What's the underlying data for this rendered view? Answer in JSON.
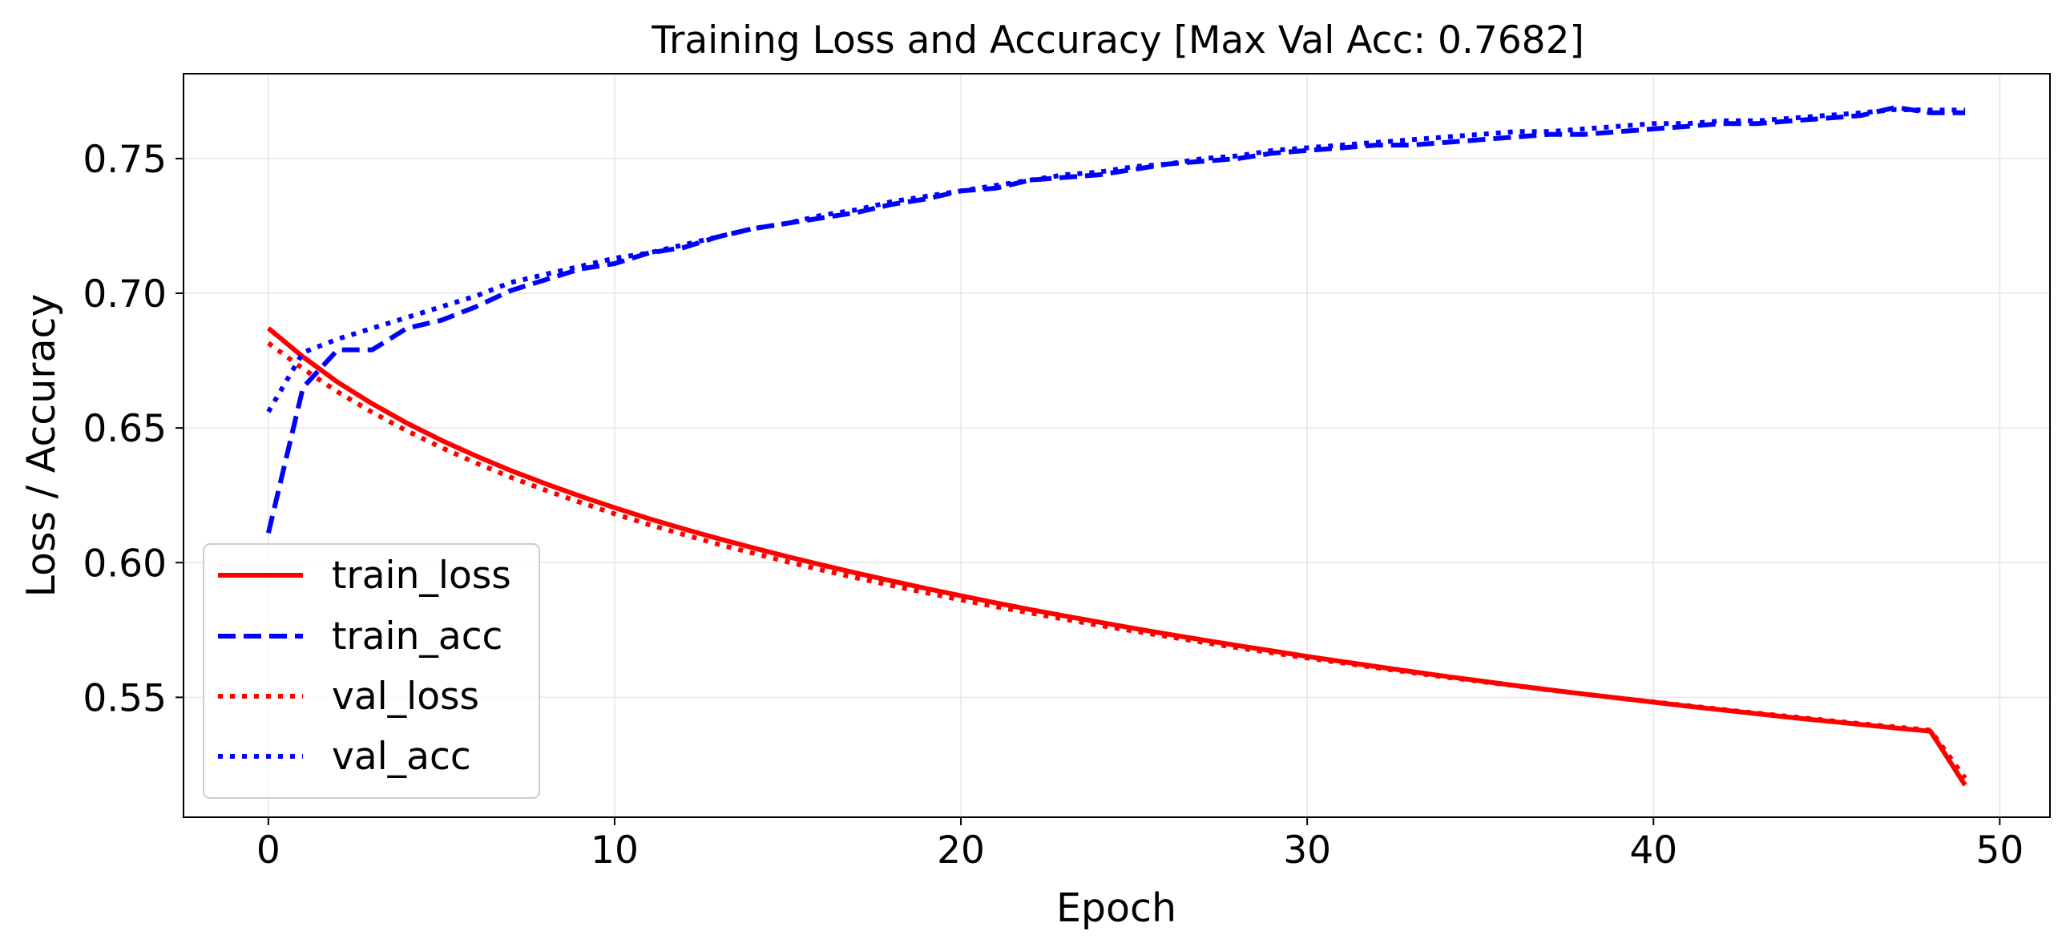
{
  "chart_data": {
    "type": "line",
    "title": "Training Loss and Accuracy [Max Val Acc: 0.7682]",
    "xlabel": "Epoch",
    "ylabel": "Loss / Accuracy",
    "xlim": [
      -2.45,
      51.45
    ],
    "ylim": [
      0.5055,
      0.7815
    ],
    "xticks": [
      0,
      10,
      20,
      30,
      40,
      50
    ],
    "xtick_labels": [
      "0",
      "10",
      "20",
      "30",
      "40",
      "50"
    ],
    "yticks": [
      0.55,
      0.6,
      0.65,
      0.7,
      0.75
    ],
    "ytick_labels": [
      "0.55",
      "0.60",
      "0.65",
      "0.70",
      "0.75"
    ],
    "grid": true,
    "legend_position": "lower-left",
    "series": [
      {
        "name": "train_loss",
        "color": "#ff0000",
        "linestyle": "solid",
        "x": [
          0,
          1,
          2,
          3,
          4,
          5,
          6,
          7,
          8,
          9,
          10,
          11,
          12,
          13,
          14,
          15,
          16,
          17,
          18,
          19,
          20,
          21,
          22,
          23,
          24,
          25,
          26,
          27,
          28,
          29,
          30,
          31,
          32,
          33,
          34,
          35,
          36,
          37,
          38,
          39,
          40,
          41,
          42,
          43,
          44,
          45,
          46,
          47,
          48,
          49
        ],
        "values": [
          0.687,
          0.6764,
          0.667,
          0.659,
          0.6518,
          0.6454,
          0.6396,
          0.6342,
          0.6293,
          0.6247,
          0.6204,
          0.6163,
          0.6125,
          0.6089,
          0.6055,
          0.6022,
          0.5991,
          0.5961,
          0.5932,
          0.5904,
          0.5877,
          0.5851,
          0.5826,
          0.5802,
          0.5779,
          0.5756,
          0.5734,
          0.5713,
          0.5692,
          0.5672,
          0.5652,
          0.5633,
          0.5614,
          0.5596,
          0.5578,
          0.5561,
          0.5544,
          0.5528,
          0.5512,
          0.5497,
          0.5482,
          0.5467,
          0.5453,
          0.5439,
          0.5425,
          0.5412,
          0.5399,
          0.5386,
          0.5374,
          0.5174
        ]
      },
      {
        "name": "train_acc",
        "color": "#0000ff",
        "linestyle": "dashed",
        "x": [
          0,
          1,
          2,
          3,
          4,
          5,
          6,
          7,
          8,
          9,
          10,
          11,
          12,
          13,
          14,
          15,
          16,
          17,
          18,
          19,
          20,
          21,
          22,
          23,
          24,
          25,
          26,
          27,
          28,
          29,
          30,
          31,
          32,
          33,
          34,
          35,
          36,
          37,
          38,
          39,
          40,
          41,
          42,
          43,
          44,
          45,
          46,
          47,
          48,
          49
        ],
        "values": [
          0.611,
          0.665,
          0.679,
          0.679,
          0.687,
          0.69,
          0.695,
          0.701,
          0.705,
          0.709,
          0.711,
          0.715,
          0.717,
          0.721,
          0.724,
          0.726,
          0.728,
          0.73,
          0.733,
          0.735,
          0.738,
          0.739,
          0.742,
          0.743,
          0.744,
          0.746,
          0.748,
          0.749,
          0.75,
          0.752,
          0.753,
          0.754,
          0.755,
          0.755,
          0.756,
          0.757,
          0.758,
          0.759,
          0.759,
          0.76,
          0.761,
          0.762,
          0.763,
          0.763,
          0.764,
          0.765,
          0.766,
          0.769,
          0.767,
          0.767
        ]
      },
      {
        "name": "val_loss",
        "color": "#ff0000",
        "linestyle": "dotted",
        "x": [
          0,
          1,
          2,
          3,
          4,
          5,
          6,
          7,
          8,
          9,
          10,
          11,
          12,
          13,
          14,
          15,
          16,
          17,
          18,
          19,
          20,
          21,
          22,
          23,
          24,
          25,
          26,
          27,
          28,
          29,
          30,
          31,
          32,
          33,
          34,
          35,
          36,
          37,
          38,
          39,
          40,
          41,
          42,
          43,
          44,
          45,
          46,
          47,
          48,
          49
        ],
        "values": [
          0.6815,
          0.672,
          0.6634,
          0.6558,
          0.6489,
          0.6427,
          0.637,
          0.6317,
          0.6269,
          0.6224,
          0.6181,
          0.6141,
          0.6104,
          0.6068,
          0.6035,
          0.6003,
          0.5972,
          0.5943,
          0.5915,
          0.5888,
          0.5862,
          0.5837,
          0.5813,
          0.579,
          0.5767,
          0.5746,
          0.5725,
          0.5704,
          0.5684,
          0.5665,
          0.5646,
          0.5628,
          0.561,
          0.5592,
          0.5575,
          0.5559,
          0.5543,
          0.5527,
          0.5512,
          0.5497,
          0.5483,
          0.5469,
          0.5455,
          0.5441,
          0.5428,
          0.5415,
          0.5402,
          0.539,
          0.5378,
          0.52
        ]
      },
      {
        "name": "val_acc",
        "color": "#0000ff",
        "linestyle": "dotted",
        "x": [
          0,
          1,
          2,
          3,
          4,
          5,
          6,
          7,
          8,
          9,
          10,
          11,
          12,
          13,
          14,
          15,
          16,
          17,
          18,
          19,
          20,
          21,
          22,
          23,
          24,
          25,
          26,
          27,
          28,
          29,
          30,
          31,
          32,
          33,
          34,
          35,
          36,
          37,
          38,
          39,
          40,
          41,
          42,
          43,
          44,
          45,
          46,
          47,
          48,
          49
        ],
        "values": [
          0.656,
          0.678,
          0.683,
          0.687,
          0.691,
          0.695,
          0.699,
          0.704,
          0.707,
          0.71,
          0.713,
          0.715,
          0.718,
          0.721,
          0.724,
          0.726,
          0.729,
          0.731,
          0.734,
          0.736,
          0.738,
          0.74,
          0.742,
          0.744,
          0.745,
          0.747,
          0.748,
          0.75,
          0.751,
          0.753,
          0.754,
          0.755,
          0.756,
          0.757,
          0.758,
          0.759,
          0.76,
          0.76,
          0.761,
          0.762,
          0.763,
          0.763,
          0.764,
          0.764,
          0.765,
          0.766,
          0.767,
          0.7682,
          0.768,
          0.768
        ]
      }
    ]
  }
}
